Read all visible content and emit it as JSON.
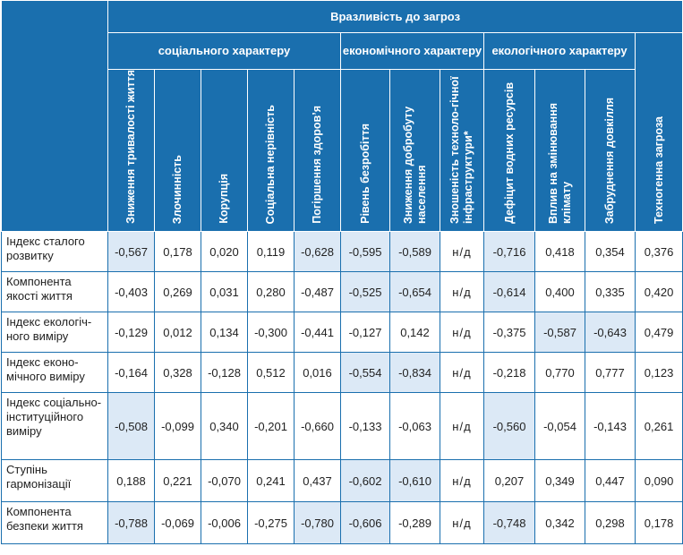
{
  "header": {
    "title": "Вразливість до загроз",
    "groups": [
      {
        "label": "соціального характеру"
      },
      {
        "label": "економічного характеру"
      },
      {
        "label": "екологічного характеру"
      }
    ],
    "columns": [
      "Зниження тривалості життя",
      "Злочинність",
      "Корупція",
      "Соціальна нерівність",
      "Погіршення здоров’я",
      "Рівень безробіття",
      "Зниження добробуту населення",
      "Зношеність техноло-гічної інфраструктури*",
      "Дефіцит водних ресурсів",
      "Вплив на змінювання клімату",
      "Забруднення довкілля",
      "Техногенна загроза"
    ]
  },
  "rows": [
    {
      "label": "Індекс сталого розвитку",
      "values": [
        "-0,567",
        "0,178",
        "0,020",
        "0,119",
        "-0,628",
        "-0,595",
        "-0,589",
        "н/д",
        "-0,716",
        "0,418",
        "0,354",
        "0,376"
      ],
      "highlight": [
        0,
        4,
        5,
        6,
        8
      ]
    },
    {
      "label": "Компонента якості життя",
      "values": [
        "-0,403",
        "0,269",
        "0,031",
        "0,280",
        "-0,487",
        "-0,525",
        "-0,654",
        "н/д",
        "-0,614",
        "0,400",
        "0,335",
        "0,420"
      ],
      "highlight": [
        5,
        6,
        8
      ]
    },
    {
      "label": "Індекс екологіч-ного виміру",
      "values": [
        "-0,129",
        "0,012",
        "0,134",
        "-0,300",
        "-0,441",
        "-0,127",
        "0,142",
        "н/д",
        "-0,375",
        "-0,587",
        "-0,643",
        "0,479"
      ],
      "highlight": [
        9,
        10
      ]
    },
    {
      "label": "Індекс еконо-мічного виміру",
      "values": [
        "-0,164",
        "0,328",
        "-0,128",
        "0,512",
        "0,016",
        "-0,554",
        "-0,834",
        "н/д",
        "-0,218",
        "0,770",
        "0,777",
        "0,123"
      ],
      "highlight": [
        5,
        6
      ]
    },
    {
      "label": "Індекс соціально-інституційного виміру",
      "values": [
        "-0,508",
        "-0,099",
        "0,340",
        "-0,201",
        "-0,660",
        "-0,133",
        "-0,063",
        "н/д",
        "-0,560",
        "-0,054",
        "-0,143",
        "0,261"
      ],
      "highlight": [
        0,
        8
      ]
    },
    {
      "label": "Ступінь гармонізації",
      "values": [
        "0,188",
        "0,221",
        "-0,070",
        "0,241",
        "0,437",
        "-0,602",
        "-0,610",
        "н/д",
        "0,207",
        "0,349",
        "0,447",
        "0,090"
      ],
      "highlight": [
        5,
        6
      ]
    },
    {
      "label": "Компонента безпеки життя",
      "values": [
        "-0,788",
        "-0,069",
        "-0,006",
        "-0,275",
        "-0,780",
        "-0,606",
        "-0,289",
        "н/д",
        "-0,748",
        "0,342",
        "0,298",
        "0,178"
      ],
      "highlight": [
        0,
        4,
        5,
        8
      ]
    }
  ],
  "colors": {
    "header_bg": "#1a6fae",
    "highlight_bg": "#dce9f6",
    "border": "#1a6fae"
  }
}
